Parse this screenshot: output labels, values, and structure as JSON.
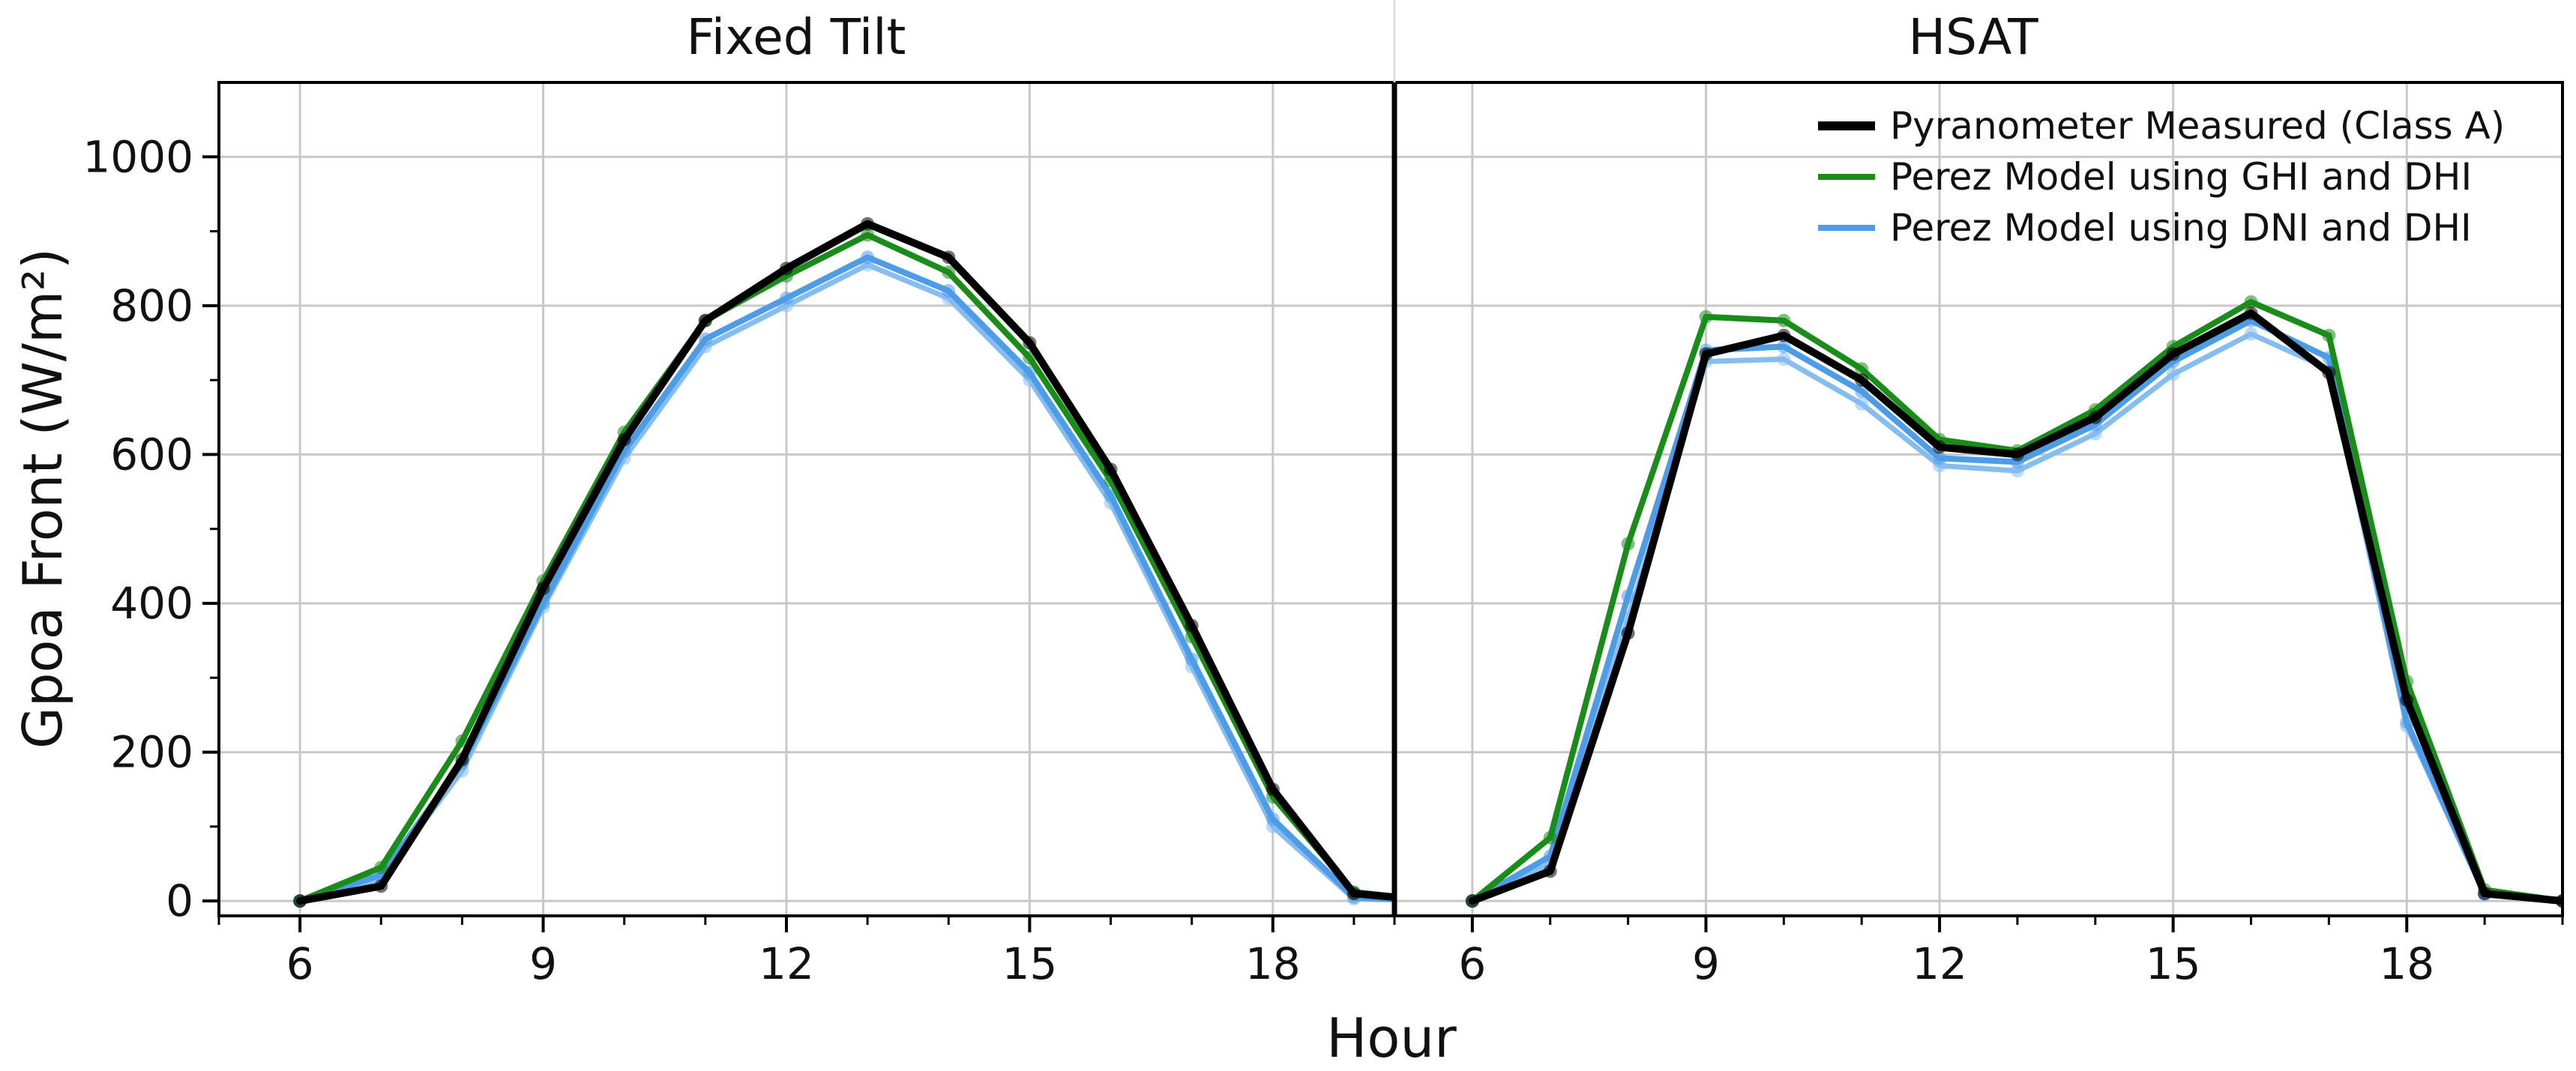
{
  "chart_data": {
    "type": "line",
    "ylabel": "Gpoa Front (W/m²)",
    "xlabel": "Hour",
    "ylim": [
      -20,
      1100
    ],
    "yticks": [
      0,
      200,
      400,
      600,
      800,
      1000
    ],
    "xticks": [
      6,
      9,
      12,
      15,
      18
    ],
    "grid": true,
    "legend_position": "top-right",
    "colors": {
      "pyranometer": "#000000",
      "ghi_dhi": "#1a8c1a",
      "dni_dhi": "#4d9ce8",
      "dni_dhi_alt": "#86bdf0",
      "grid": "#c8c8c8"
    },
    "panels": [
      {
        "title": "Fixed Tilt",
        "xlim": [
          5,
          19.5
        ],
        "series": [
          {
            "name": "Pyranometer Measured (Class A)",
            "key": "pyranometer",
            "x": [
              6,
              7,
              8,
              9,
              10,
              11,
              12,
              13,
              14,
              15,
              16,
              17,
              18,
              19,
              20
            ],
            "y": [
              0,
              20,
              190,
              420,
              620,
              780,
              850,
              910,
              865,
              750,
              580,
              370,
              150,
              10,
              0
            ]
          },
          {
            "name": "Perez Model using GHI and DHI",
            "key": "ghi_dhi",
            "x": [
              6,
              7,
              8,
              9,
              10,
              11,
              12,
              13,
              14,
              15,
              16,
              17,
              18,
              19,
              20
            ],
            "y": [
              0,
              45,
              215,
              430,
              630,
              780,
              840,
              895,
              845,
              730,
              565,
              355,
              140,
              12,
              0
            ]
          },
          {
            "name": "Perez Model using DNI and DHI",
            "key": "dni_dhi",
            "x": [
              6,
              7,
              8,
              9,
              10,
              11,
              12,
              13,
              14,
              15,
              16,
              17,
              18,
              19,
              20
            ],
            "y": [
              0,
              35,
              185,
              400,
              605,
              755,
              810,
              865,
              820,
              710,
              545,
              325,
              110,
              5,
              0
            ]
          },
          {
            "name": "",
            "key": "dni_dhi_alt",
            "x": [
              6,
              7,
              8,
              9,
              10,
              11,
              12,
              13,
              14,
              15,
              16,
              17,
              18,
              19,
              20
            ],
            "y": [
              0,
              30,
              175,
              395,
              595,
              745,
              800,
              855,
              810,
              700,
              535,
              315,
              100,
              3,
              0
            ]
          }
        ]
      },
      {
        "title": "HSAT",
        "xlim": [
          5,
          20
        ],
        "series": [
          {
            "name": "Pyranometer Measured (Class A)",
            "key": "pyranometer",
            "x": [
              6,
              7,
              8,
              9,
              10,
              11,
              12,
              13,
              14,
              15,
              16,
              17,
              18,
              19,
              20
            ],
            "y": [
              0,
              40,
              360,
              735,
              760,
              700,
              610,
              600,
              650,
              735,
              790,
              710,
              270,
              10,
              0
            ]
          },
          {
            "name": "Perez Model using GHI and DHI",
            "key": "ghi_dhi",
            "x": [
              6,
              7,
              8,
              9,
              10,
              11,
              12,
              13,
              14,
              15,
              16,
              17,
              18,
              19,
              20
            ],
            "y": [
              0,
              85,
              480,
              785,
              780,
              715,
              620,
              605,
              660,
              745,
              805,
              760,
              295,
              15,
              0
            ]
          },
          {
            "name": "Perez Model using DNI and DHI",
            "key": "dni_dhi",
            "x": [
              6,
              7,
              8,
              9,
              10,
              11,
              12,
              13,
              14,
              15,
              16,
              17,
              18,
              19,
              20
            ],
            "y": [
              0,
              60,
              410,
              740,
              745,
              685,
              595,
              590,
              640,
              725,
              780,
              730,
              240,
              10,
              0
            ]
          },
          {
            "name": "",
            "key": "dni_dhi_alt",
            "x": [
              6,
              7,
              8,
              9,
              10,
              11,
              12,
              13,
              14,
              15,
              16,
              17,
              18,
              19,
              20
            ],
            "y": [
              0,
              50,
              380,
              725,
              728,
              668,
              585,
              578,
              628,
              708,
              762,
              715,
              235,
              8,
              0
            ]
          }
        ]
      }
    ],
    "legend": [
      {
        "label": "Pyranometer Measured (Class A)",
        "key": "pyranometer"
      },
      {
        "label": "Perez Model using GHI and DHI",
        "key": "ghi_dhi"
      },
      {
        "label": "Perez Model using DNI and DHI",
        "key": "dni_dhi"
      }
    ]
  }
}
